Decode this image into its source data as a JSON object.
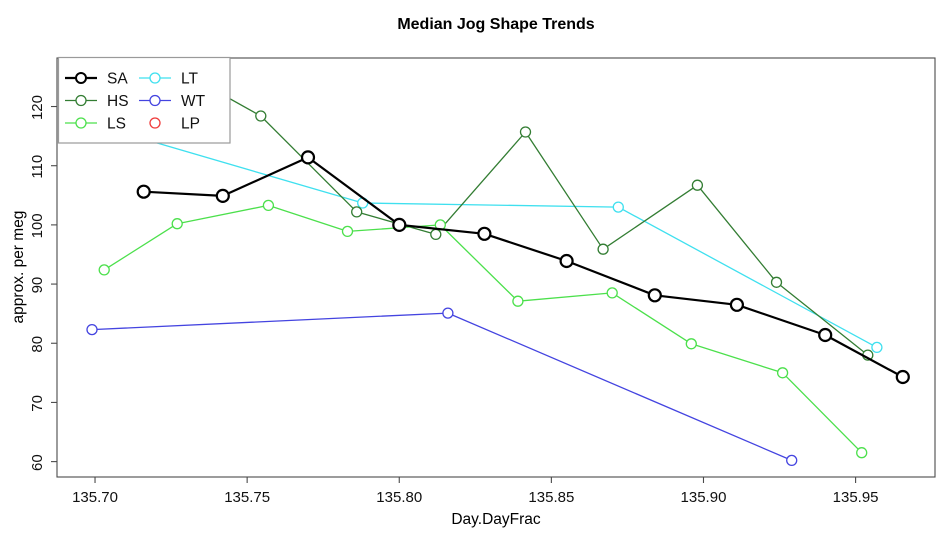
{
  "title": "Median Jog Shape Trends",
  "axes": {
    "xlabel": "Day.DayFrac",
    "ylabel": "approx. per meg",
    "x_ticks": [
      135.7,
      135.75,
      135.8,
      135.85,
      135.9,
      135.95
    ],
    "x_tick_labels": [
      "135.70",
      "135.75",
      "135.80",
      "135.85",
      "135.90",
      "135.95"
    ],
    "y_ticks": [
      60,
      70,
      80,
      90,
      100,
      110,
      120
    ],
    "y_tick_labels": [
      "60",
      "70",
      "80",
      "90",
      "100",
      "110",
      "120"
    ]
  },
  "chart_data": {
    "type": "line",
    "title": "Median Jog Shape Trends",
    "xlabel": "Day.DayFrac",
    "ylabel": "approx. per meg",
    "xlim": [
      135.6875,
      135.9761
    ],
    "ylim": [
      57.4,
      128.2
    ],
    "grid": false,
    "legend_position": "topleft",
    "marker": "circle-open",
    "series": [
      {
        "name": "SA",
        "color": "#000000",
        "line_width": 2.2,
        "x": [
          135.716,
          135.742,
          135.77,
          135.8,
          135.828,
          135.855,
          135.884,
          135.911,
          135.94,
          135.9655
        ],
        "y": [
          105.6,
          104.9,
          111.4,
          100.0,
          98.5,
          93.9,
          88.1,
          86.5,
          81.4,
          74.3
        ]
      },
      {
        "name": "HS",
        "color": "#337d33",
        "line_width": 1.3,
        "x": [
          135.728,
          135.7545,
          135.786,
          135.812,
          135.8415,
          135.867,
          135.898,
          135.924,
          135.954
        ],
        "y": [
          126.0,
          118.4,
          102.2,
          98.4,
          115.7,
          95.9,
          106.7,
          90.3,
          78.0
        ]
      },
      {
        "name": "LS",
        "color": "#4ce04c",
        "line_width": 1.3,
        "x": [
          135.703,
          135.727,
          135.757,
          135.783,
          135.8135,
          135.839,
          135.87,
          135.896,
          135.926,
          135.952
        ],
        "y": [
          92.4,
          100.2,
          103.3,
          98.9,
          100.0,
          87.1,
          88.5,
          79.9,
          75.0,
          61.5
        ]
      },
      {
        "name": "LT",
        "color": "#3fe0ef",
        "line_width": 1.3,
        "x": [
          135.704,
          135.788,
          135.872,
          135.957
        ],
        "y": [
          116.3,
          103.7,
          103.0,
          79.3
        ]
      },
      {
        "name": "WT",
        "color": "#4444e0",
        "line_width": 1.3,
        "x": [
          135.699,
          135.816,
          135.929
        ],
        "y": [
          82.3,
          85.1,
          60.2
        ]
      },
      {
        "name": "LP",
        "color": "#ef3b3b",
        "line_width": 1.3,
        "x": [],
        "y": []
      }
    ]
  },
  "legend": {
    "border_color": "#9a9a9a",
    "columns": 2,
    "entries": [
      {
        "label": "SA",
        "color": "#000000",
        "line": true
      },
      {
        "label": "HS",
        "color": "#337d33",
        "line": true
      },
      {
        "label": "LS",
        "color": "#4ce04c",
        "line": true
      },
      {
        "label": "LT",
        "color": "#3fe0ef",
        "line": true
      },
      {
        "label": "WT",
        "color": "#4444e0",
        "line": true
      },
      {
        "label": "LP",
        "color": "#ef3b3b",
        "line": false
      }
    ]
  }
}
